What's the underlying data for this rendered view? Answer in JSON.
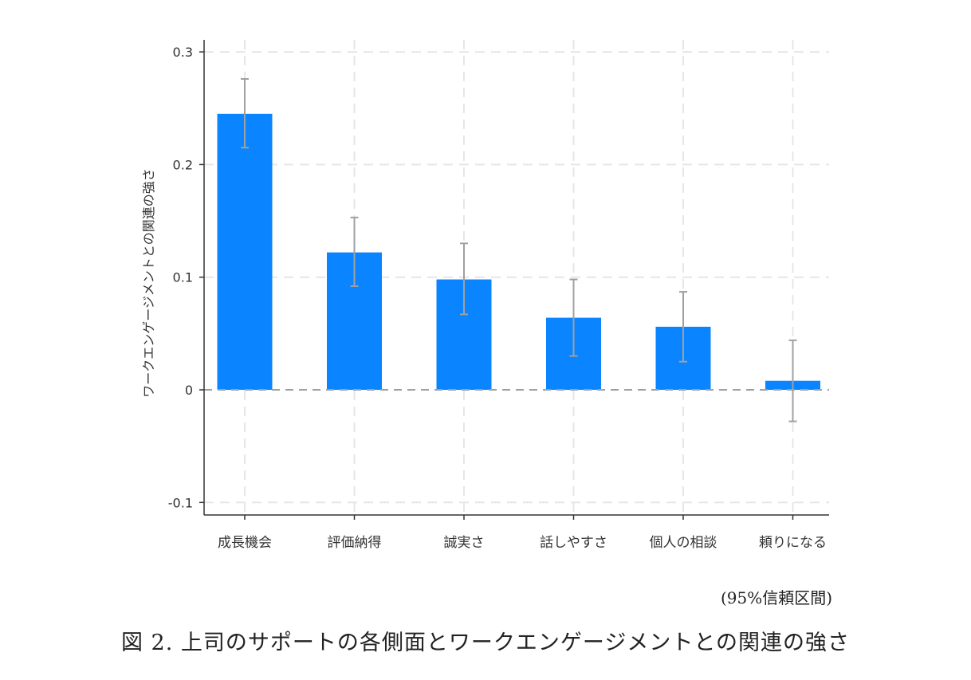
{
  "chart_data": {
    "type": "bar",
    "ylabel": "ワークエンゲージメントとの関連の強さ",
    "xlabel": "",
    "categories": [
      "成長機会",
      "評価納得",
      "誠実さ",
      "話しやすさ",
      "個人の相談",
      "頼りになる"
    ],
    "values": [
      0.245,
      0.122,
      0.098,
      0.064,
      0.056,
      0.008
    ],
    "ci_low": [
      0.215,
      0.092,
      0.067,
      0.03,
      0.025,
      -0.028
    ],
    "ci_high": [
      0.276,
      0.153,
      0.13,
      0.098,
      0.087,
      0.044
    ],
    "yticks": [
      -0.1,
      0,
      0.1,
      0.2,
      0.3
    ],
    "ytick_labels": [
      "-0.1",
      "0",
      "0.1",
      "0.2",
      "0.3"
    ],
    "ylim": [
      -0.11,
      0.31
    ],
    "grid": true,
    "bar_color": "#0a84ff",
    "errorbar_color": "#a0a0a0",
    "zero_line_color": "#a0a0a0"
  },
  "note": "(95%信頼区間)",
  "caption": "図 2.  上司のサポートの各側面とワークエンゲージメントとの関連の強さ"
}
